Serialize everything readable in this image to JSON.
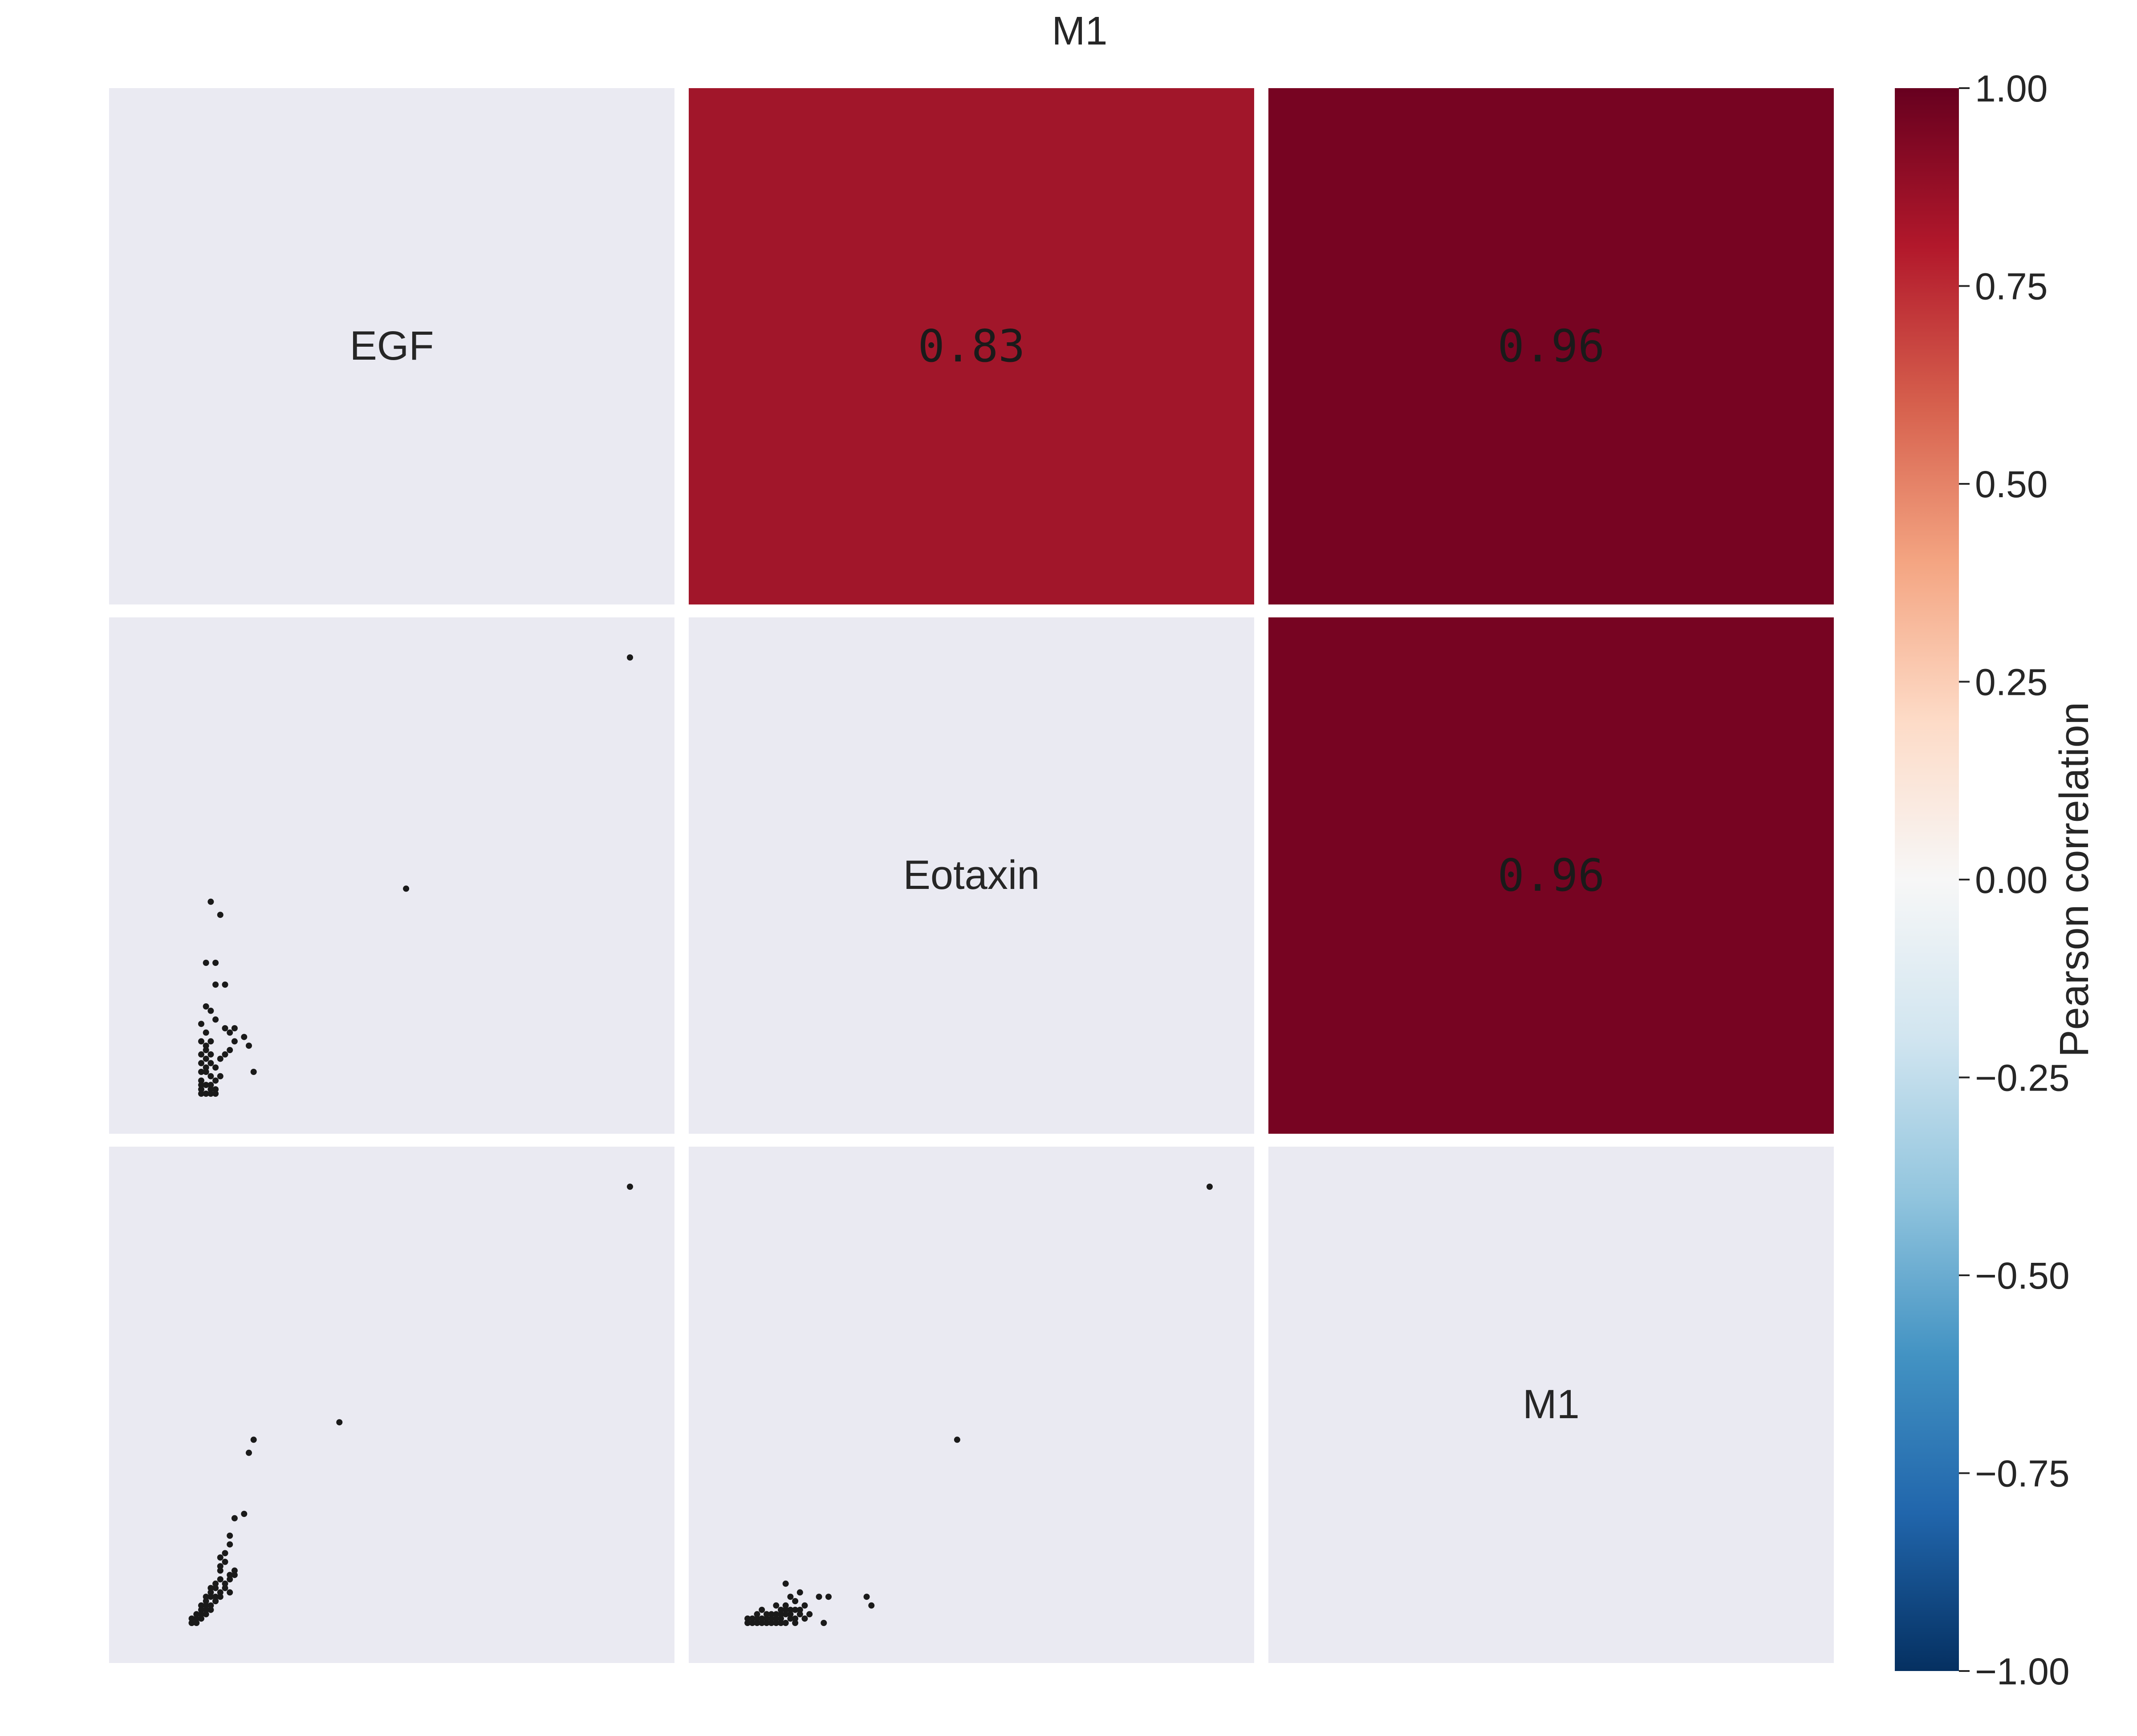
{
  "chart_data": {
    "type": "scatter",
    "title": "M1",
    "variables": [
      "EGF",
      "Eotaxin",
      "M1"
    ],
    "panel_background": "#eaeaf2",
    "point_color": "#1a1a1a",
    "correlations": [
      {
        "row": 0,
        "col": 1,
        "label": "0.83",
        "value": 0.83,
        "color": "#a1162a"
      },
      {
        "row": 0,
        "col": 2,
        "label": "0.96",
        "value": 0.96,
        "color": "#770422"
      },
      {
        "row": 1,
        "col": 2,
        "label": "0.96",
        "value": 0.96,
        "color": "#770422"
      }
    ],
    "scatter_panels": [
      {
        "row": 1,
        "col": 0,
        "x_var": "EGF",
        "y_var": "Eotaxin",
        "points": [
          [
            1.0,
            1.0
          ],
          [
            0.53,
            0.47
          ],
          [
            0.12,
            0.44
          ],
          [
            0.14,
            0.41
          ],
          [
            0.11,
            0.3
          ],
          [
            0.13,
            0.3
          ],
          [
            0.13,
            0.25
          ],
          [
            0.15,
            0.25
          ],
          [
            0.11,
            0.2
          ],
          [
            0.12,
            0.19
          ],
          [
            0.13,
            0.17
          ],
          [
            0.15,
            0.15
          ],
          [
            0.17,
            0.15
          ],
          [
            0.16,
            0.14
          ],
          [
            0.17,
            0.12
          ],
          [
            0.19,
            0.13
          ],
          [
            0.2,
            0.11
          ],
          [
            0.16,
            0.1
          ],
          [
            0.15,
            0.09
          ],
          [
            0.21,
            0.05
          ],
          [
            0.1,
            0.16
          ],
          [
            0.11,
            0.14
          ],
          [
            0.1,
            0.12
          ],
          [
            0.12,
            0.12
          ],
          [
            0.11,
            0.1
          ],
          [
            0.1,
            0.09
          ],
          [
            0.11,
            0.08
          ],
          [
            0.12,
            0.07
          ],
          [
            0.13,
            0.06
          ],
          [
            0.1,
            0.05
          ],
          [
            0.11,
            0.05
          ],
          [
            0.12,
            0.04
          ],
          [
            0.1,
            0.03
          ],
          [
            0.11,
            0.02
          ],
          [
            0.12,
            0.02
          ],
          [
            0.1,
            0.01
          ],
          [
            0.11,
            0.0
          ],
          [
            0.12,
            0.0
          ],
          [
            0.13,
            0.01
          ],
          [
            0.1,
            0.0
          ],
          [
            0.11,
            0.11
          ],
          [
            0.12,
            0.09
          ],
          [
            0.14,
            0.08
          ],
          [
            0.1,
            0.07
          ],
          [
            0.11,
            0.06
          ],
          [
            0.13,
            0.03
          ],
          [
            0.14,
            0.04
          ],
          [
            0.1,
            0.02
          ],
          [
            0.12,
            0.01
          ],
          [
            0.13,
            0.0
          ]
        ]
      },
      {
        "row": 2,
        "col": 0,
        "x_var": "EGF",
        "y_var": "M1",
        "points": [
          [
            1.0,
            1.0
          ],
          [
            0.39,
            0.46
          ],
          [
            0.21,
            0.42
          ],
          [
            0.2,
            0.39
          ],
          [
            0.19,
            0.25
          ],
          [
            0.17,
            0.24
          ],
          [
            0.16,
            0.2
          ],
          [
            0.16,
            0.18
          ],
          [
            0.14,
            0.15
          ],
          [
            0.15,
            0.14
          ],
          [
            0.14,
            0.12
          ],
          [
            0.17,
            0.12
          ],
          [
            0.16,
            0.11
          ],
          [
            0.14,
            0.1
          ],
          [
            0.16,
            0.07
          ],
          [
            0.13,
            0.09
          ],
          [
            0.13,
            0.08
          ],
          [
            0.12,
            0.07
          ],
          [
            0.12,
            0.06
          ],
          [
            0.11,
            0.05
          ],
          [
            0.11,
            0.04
          ],
          [
            0.1,
            0.03
          ],
          [
            0.1,
            0.02
          ],
          [
            0.09,
            0.01
          ],
          [
            0.08,
            0.0
          ],
          [
            0.08,
            0.01
          ],
          [
            0.09,
            0.02
          ],
          [
            0.1,
            0.04
          ],
          [
            0.11,
            0.06
          ],
          [
            0.12,
            0.08
          ],
          [
            0.13,
            0.05
          ],
          [
            0.09,
            0.0
          ],
          [
            0.1,
            0.01
          ],
          [
            0.11,
            0.03
          ],
          [
            0.12,
            0.04
          ],
          [
            0.13,
            0.06
          ],
          [
            0.14,
            0.07
          ],
          [
            0.15,
            0.09
          ],
          [
            0.14,
            0.13
          ],
          [
            0.15,
            0.16
          ],
          [
            0.08,
            0.0
          ],
          [
            0.09,
            0.01
          ],
          [
            0.1,
            0.02
          ],
          [
            0.11,
            0.02
          ],
          [
            0.12,
            0.03
          ],
          [
            0.13,
            0.05
          ],
          [
            0.14,
            0.06
          ],
          [
            0.15,
            0.08
          ],
          [
            0.16,
            0.1
          ],
          [
            0.17,
            0.11
          ]
        ]
      },
      {
        "row": 2,
        "col": 1,
        "x_var": "Eotaxin",
        "y_var": "M1",
        "points": [
          [
            1.0,
            1.0
          ],
          [
            0.47,
            0.42
          ],
          [
            0.11,
            0.09
          ],
          [
            0.14,
            0.07
          ],
          [
            0.13,
            0.05
          ],
          [
            0.18,
            0.06
          ],
          [
            0.2,
            0.06
          ],
          [
            0.28,
            0.06
          ],
          [
            0.29,
            0.04
          ],
          [
            0.19,
            0.0
          ],
          [
            0.12,
            0.06
          ],
          [
            0.13,
            0.03
          ],
          [
            0.15,
            0.04
          ],
          [
            0.11,
            0.03
          ],
          [
            0.1,
            0.02
          ],
          [
            0.12,
            0.01
          ],
          [
            0.11,
            0.0
          ],
          [
            0.09,
            0.02
          ],
          [
            0.08,
            0.01
          ],
          [
            0.07,
            0.0
          ],
          [
            0.06,
            0.01
          ],
          [
            0.05,
            0.0
          ],
          [
            0.04,
            0.0
          ],
          [
            0.03,
            0.0
          ],
          [
            0.03,
            0.01
          ],
          [
            0.05,
            0.02
          ],
          [
            0.07,
            0.02
          ],
          [
            0.09,
            0.0
          ],
          [
            0.1,
            0.01
          ],
          [
            0.14,
            0.02
          ],
          [
            0.16,
            0.02
          ],
          [
            0.15,
            0.01
          ],
          [
            0.13,
            0.01
          ],
          [
            0.12,
            0.03
          ],
          [
            0.11,
            0.04
          ],
          [
            0.1,
            0.03
          ],
          [
            0.09,
            0.04
          ],
          [
            0.08,
            0.02
          ],
          [
            0.06,
            0.03
          ],
          [
            0.04,
            0.01
          ],
          [
            0.05,
            0.01
          ],
          [
            0.06,
            0.0
          ],
          [
            0.07,
            0.01
          ],
          [
            0.08,
            0.0
          ],
          [
            0.09,
            0.01
          ],
          [
            0.1,
            0.0
          ],
          [
            0.11,
            0.02
          ],
          [
            0.12,
            0.02
          ],
          [
            0.13,
            0.0
          ],
          [
            0.14,
            0.03
          ]
        ]
      }
    ],
    "colorbar": {
      "label": "Pearson correlation",
      "vmin": -1.0,
      "vmax": 1.0,
      "colormap": "RdBu_r",
      "stops": [
        "#053061",
        "#2166ac",
        "#4393c3",
        "#92c5de",
        "#d1e5f0",
        "#f7f7f7",
        "#fddbc7",
        "#f4a582",
        "#d6604d",
        "#b2182b",
        "#67001f"
      ],
      "ticks": [
        1.0,
        0.75,
        0.5,
        0.25,
        0.0,
        -0.25,
        -0.5,
        -0.75,
        -1.0
      ],
      "tick_labels": [
        "1.00",
        "0.75",
        "0.50",
        "0.25",
        "0.00",
        "−0.25",
        "−0.50",
        "−0.75",
        "−1.00"
      ]
    }
  }
}
